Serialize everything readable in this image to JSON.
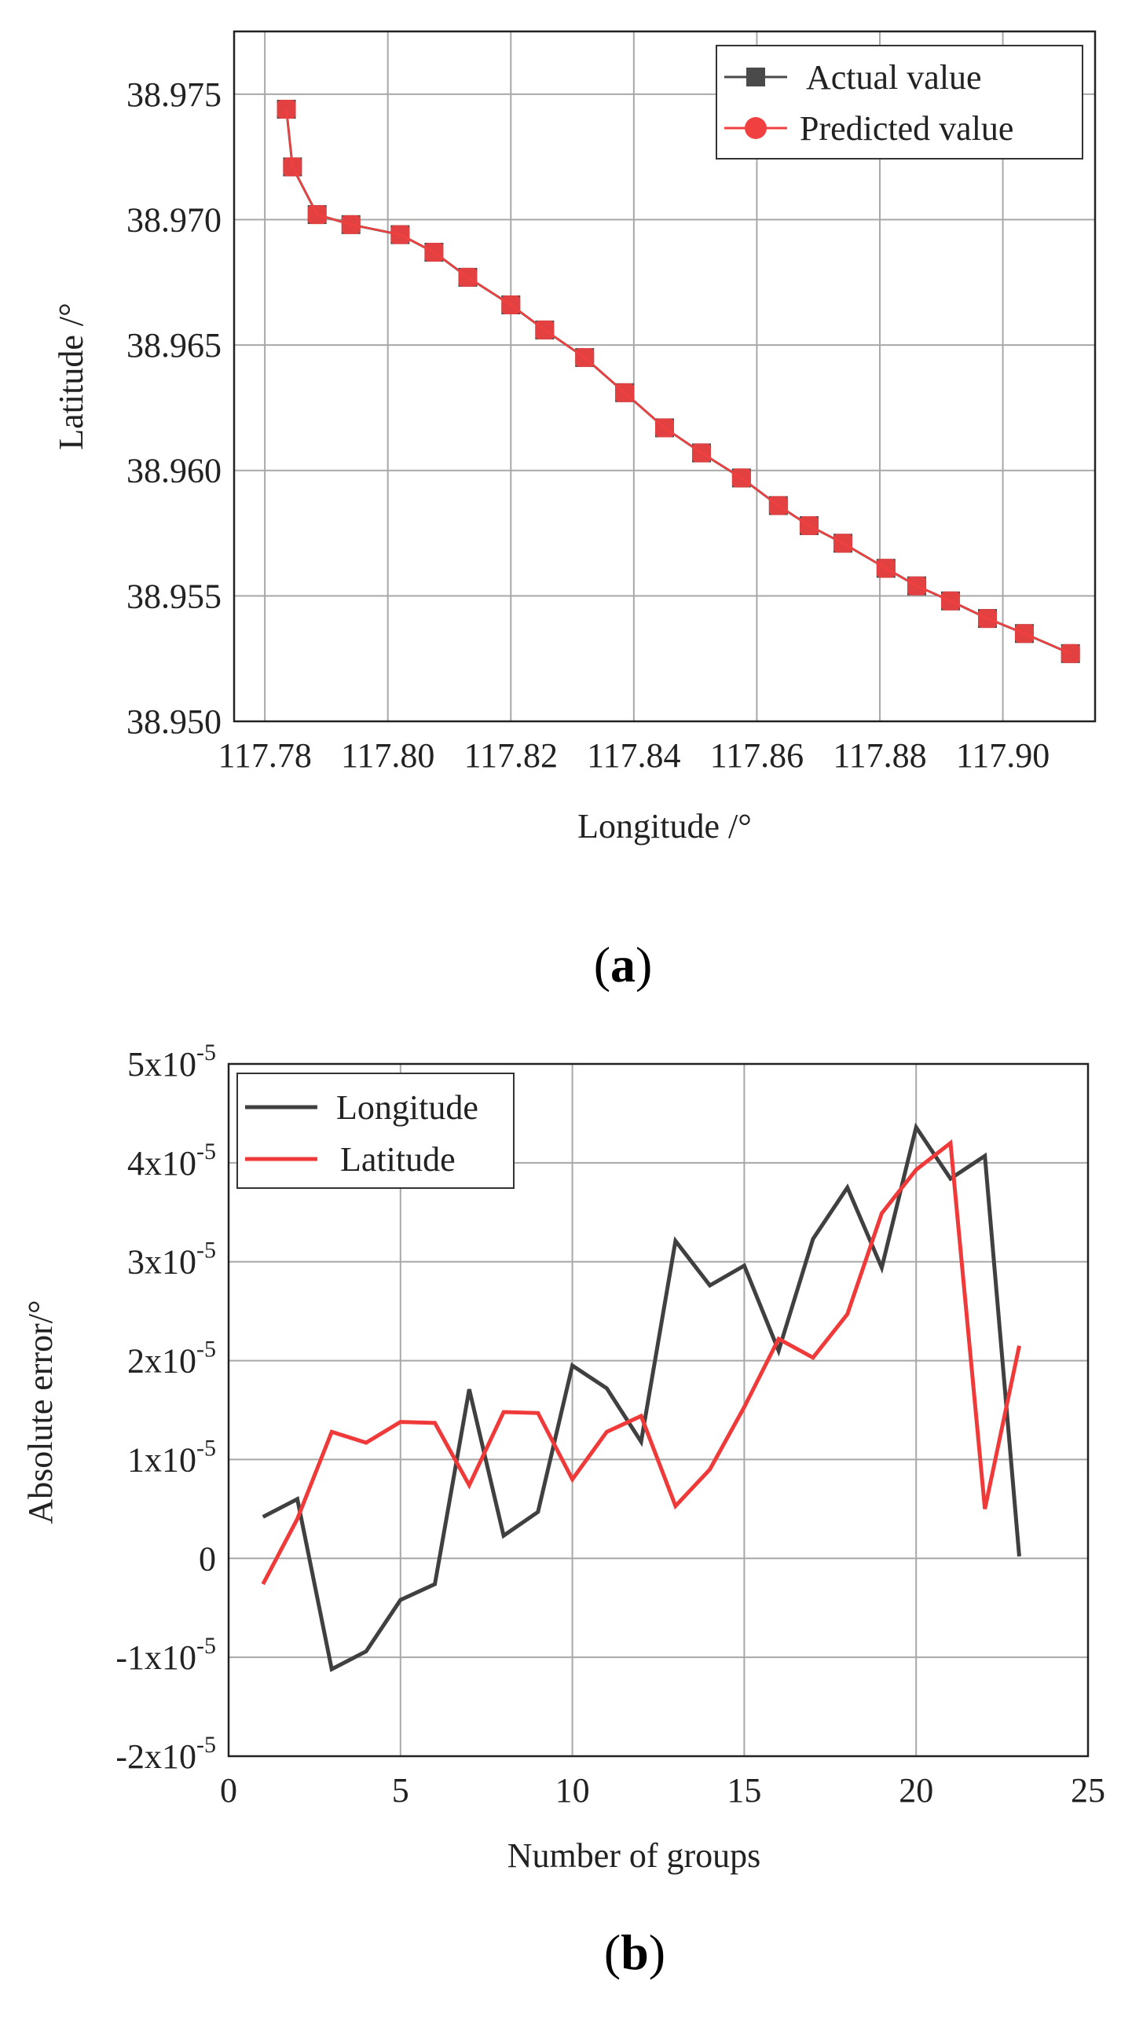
{
  "chart_data": [
    {
      "type": "line",
      "panel_label": "(a)",
      "xlabel": "Longitude /°",
      "ylabel": "Latitude /°",
      "xlim": [
        117.775,
        117.915
      ],
      "ylim": [
        38.95,
        38.9775
      ],
      "xticks": [
        117.78,
        117.8,
        117.82,
        117.84,
        117.86,
        117.88,
        117.9
      ],
      "xtick_labels": [
        "117.78",
        "117.80",
        "117.82",
        "117.84",
        "117.86",
        "117.88",
        "117.90"
      ],
      "yticks": [
        38.95,
        38.955,
        38.96,
        38.965,
        38.97,
        38.975
      ],
      "ytick_labels": [
        "38.950",
        "38.955",
        "38.960",
        "38.965",
        "38.970",
        "38.975"
      ],
      "grid": true,
      "legend_position": "top-right",
      "series": [
        {
          "name": "Actual value",
          "color": "#4a4a4a",
          "marker": "square",
          "x": [
            117.7835,
            117.7845,
            117.7885,
            117.794,
            117.802,
            117.8075,
            117.813,
            117.82,
            117.8255,
            117.832,
            117.8385,
            117.845,
            117.851,
            117.8575,
            117.8635,
            117.8685,
            117.874,
            117.881,
            117.886,
            117.8915,
            117.8975,
            117.9035,
            117.911
          ],
          "y": [
            38.9744,
            38.9721,
            38.9702,
            38.9698,
            38.9694,
            38.9687,
            38.9677,
            38.9666,
            38.9656,
            38.9645,
            38.9631,
            38.9617,
            38.9607,
            38.9597,
            38.9586,
            38.9578,
            38.9571,
            38.9561,
            38.9554,
            38.9548,
            38.9541,
            38.9535,
            38.9527
          ]
        },
        {
          "name": "Predicted value",
          "color": "#f04040",
          "marker": "circle",
          "x": [
            117.7835,
            117.7845,
            117.7885,
            117.794,
            117.802,
            117.8075,
            117.813,
            117.82,
            117.8255,
            117.832,
            117.8385,
            117.845,
            117.851,
            117.8575,
            117.8635,
            117.8685,
            117.874,
            117.881,
            117.886,
            117.8915,
            117.8975,
            117.9035,
            117.911
          ],
          "y": [
            38.9744,
            38.9721,
            38.9702,
            38.9698,
            38.9694,
            38.9687,
            38.9677,
            38.9666,
            38.9656,
            38.9645,
            38.9631,
            38.9617,
            38.9607,
            38.9597,
            38.9586,
            38.9578,
            38.9571,
            38.9561,
            38.9554,
            38.9548,
            38.9541,
            38.9535,
            38.9527
          ]
        }
      ]
    },
    {
      "type": "line",
      "panel_label": "(b)",
      "xlabel": "Number of groups",
      "ylabel": "Absolute error/°",
      "xlim": [
        0,
        25
      ],
      "ylim": [
        -2e-05,
        5e-05
      ],
      "xticks": [
        0,
        5,
        10,
        15,
        20,
        25
      ],
      "xtick_labels": [
        "0",
        "5",
        "10",
        "15",
        "20",
        "25"
      ],
      "yticks": [
        -2e-05,
        -1e-05,
        0,
        1e-05,
        2e-05,
        3e-05,
        4e-05,
        5e-05
      ],
      "ytick_labels": [
        {
          "base": "-2x10",
          "exp": "-5"
        },
        {
          "base": "-1x10",
          "exp": "-5"
        },
        {
          "base": "0",
          "exp": ""
        },
        {
          "base": "1x10",
          "exp": "-5"
        },
        {
          "base": "2x10",
          "exp": "-5"
        },
        {
          "base": "3x10",
          "exp": "-5"
        },
        {
          "base": "4x10",
          "exp": "-5"
        },
        {
          "base": "5x10",
          "exp": "-5"
        }
      ],
      "grid": true,
      "legend_position": "top-left",
      "series": [
        {
          "name": "Longitude",
          "color": "#404040",
          "x": [
            1,
            2,
            3,
            4,
            5,
            6,
            7,
            8,
            9,
            10,
            11,
            12,
            13,
            14,
            15,
            16,
            17,
            18,
            19,
            20,
            21,
            22,
            23
          ],
          "values": [
            4.2e-06,
            6e-06,
            -1.12e-05,
            -9.4e-06,
            -4.2e-06,
            -2.6e-06,
            1.71e-05,
            2.3e-06,
            4.7e-06,
            1.95e-05,
            1.72e-05,
            1.18e-05,
            3.21e-05,
            2.76e-05,
            2.96e-05,
            2.1e-05,
            3.23e-05,
            3.75e-05,
            2.94e-05,
            4.36e-05,
            3.84e-05,
            4.07e-05,
            2e-07
          ]
        },
        {
          "name": "Latitude",
          "color": "#f03a3a",
          "x": [
            1,
            2,
            3,
            4,
            5,
            6,
            7,
            8,
            9,
            10,
            11,
            12,
            13,
            14,
            15,
            16,
            17,
            18,
            19,
            20,
            21,
            22,
            23
          ],
          "values": [
            -2.6e-06,
            4e-06,
            1.28e-05,
            1.17e-05,
            1.38e-05,
            1.37e-05,
            7.4e-06,
            1.48e-05,
            1.47e-05,
            8e-06,
            1.28e-05,
            1.44e-05,
            5.3e-06,
            9e-06,
            1.53e-05,
            2.22e-05,
            2.03e-05,
            2.47e-05,
            3.49e-05,
            3.93e-05,
            4.2e-05,
            5e-06,
            2.15e-05
          ]
        }
      ]
    }
  ]
}
